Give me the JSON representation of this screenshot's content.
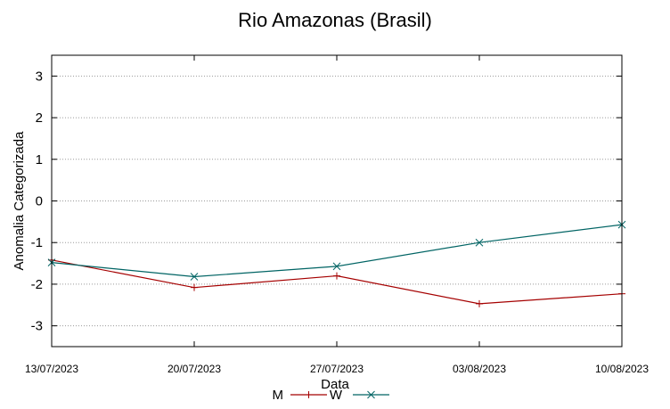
{
  "chart_data": {
    "type": "line",
    "title": "Rio Amazonas (Brasil)",
    "xlabel": "Data",
    "ylabel": "Anomalia Categorizada",
    "categories": [
      "13/07/2023",
      "20/07/2023",
      "27/07/2023",
      "03/08/2023",
      "10/08/2023"
    ],
    "yticks": [
      3,
      2,
      1,
      0,
      -1,
      -2,
      -3
    ],
    "ylim": [
      -3.5,
      3.5
    ],
    "grid": "horizontal dotted",
    "legend_position": "bottom-center",
    "series": [
      {
        "name": "M",
        "color": "#a50000",
        "marker": "plus",
        "values": [
          -1.42,
          -2.08,
          -1.8,
          -2.47,
          -2.23
        ]
      },
      {
        "name": "W",
        "color": "#006464",
        "marker": "cross",
        "values": [
          -1.48,
          -1.82,
          -1.57,
          -1.0,
          -0.57
        ]
      }
    ]
  }
}
